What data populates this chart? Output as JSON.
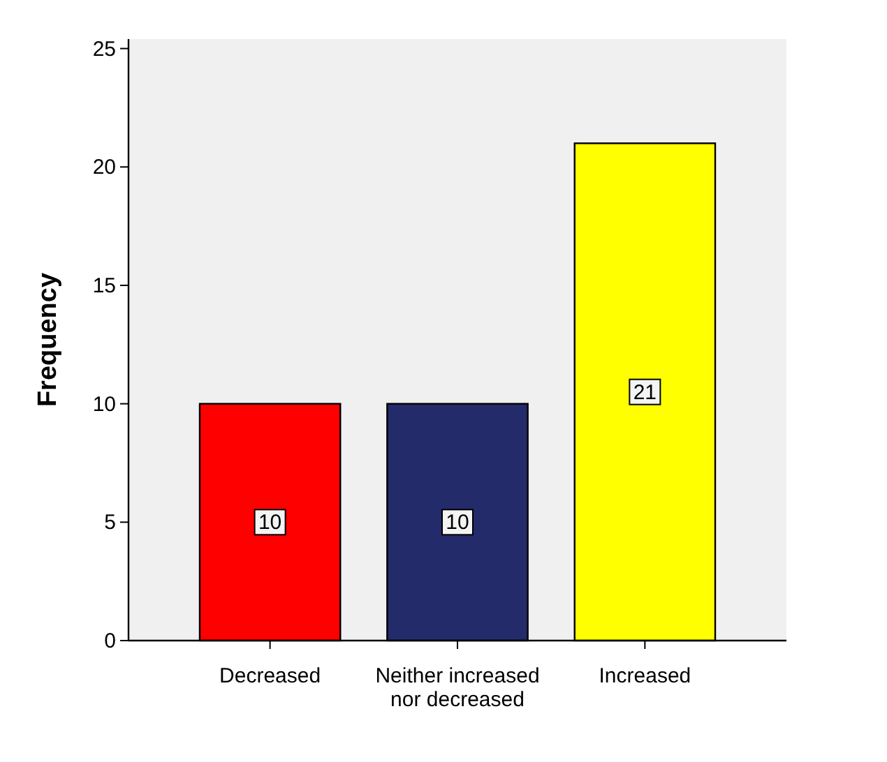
{
  "chart_data": {
    "type": "bar",
    "ylabel": "Frequency",
    "categories": [
      "Decreased",
      "Neither increased nor decreased",
      "Increased"
    ],
    "values": [
      10,
      10,
      21
    ],
    "colors": [
      "#ff0000",
      "#232b6b",
      "#ffff00"
    ],
    "ylim": [
      0,
      25.4
    ],
    "yticks": [
      0,
      5,
      10,
      15,
      20,
      25
    ],
    "data_labels": true
  }
}
